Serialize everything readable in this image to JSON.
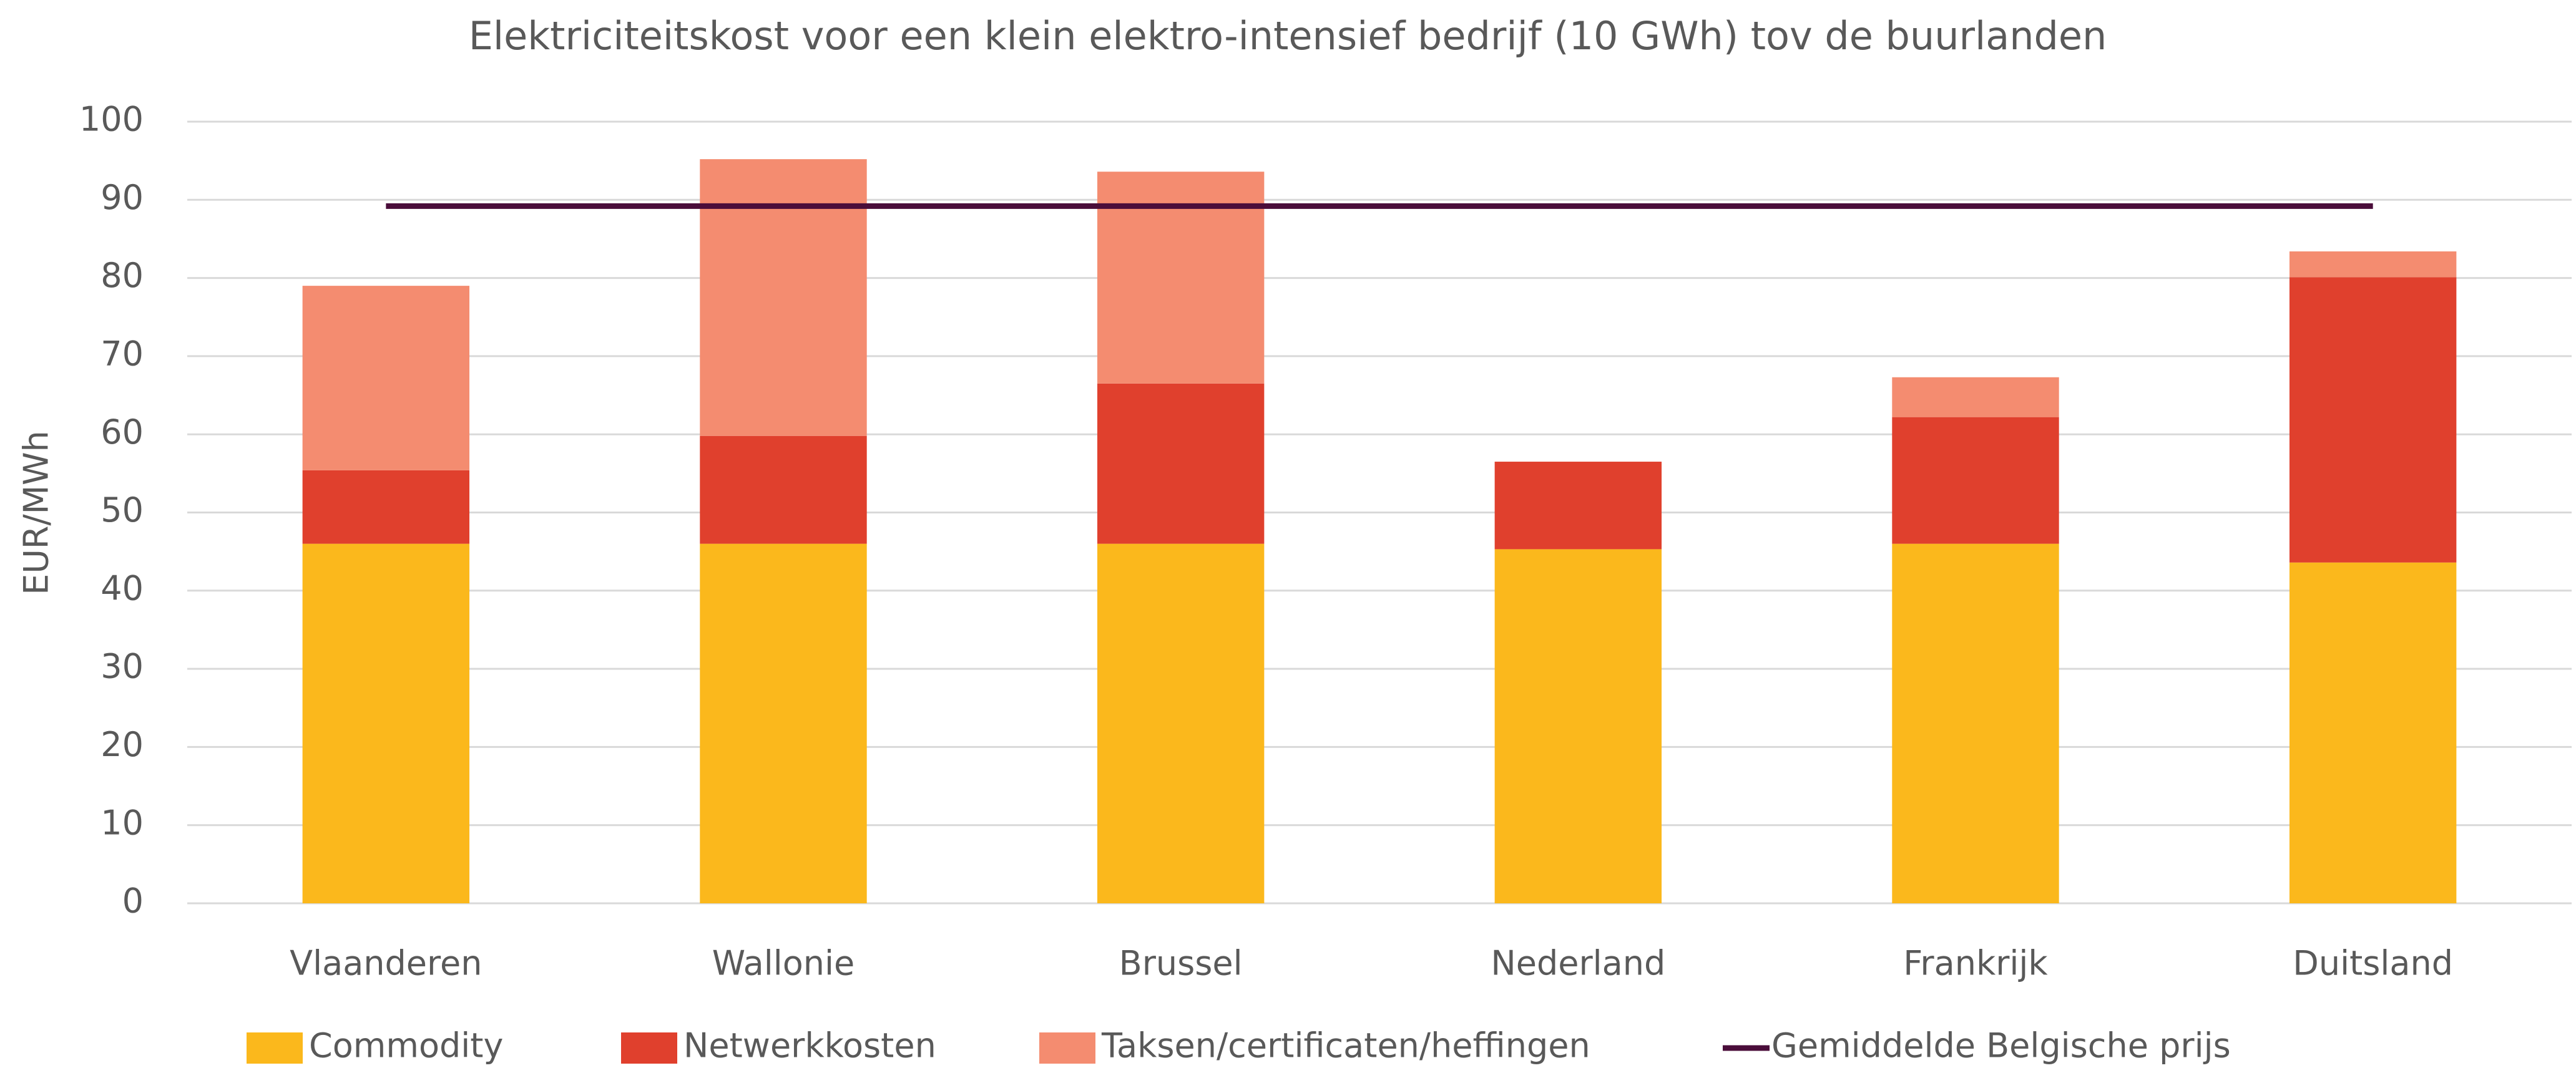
{
  "chart_data": {
    "type": "bar",
    "stacked": true,
    "title": "Elektriciteitskost voor een klein elektro-intensief bedrijf (10 GWh) tov de buurlanden",
    "y_label": "EUR/MWh",
    "categories": [
      "Vlaanderen",
      "Wallonie",
      "Brussel",
      "Nederland",
      "Frankrijk",
      "Duitsland"
    ],
    "series": [
      {
        "name": "Commodity",
        "color": "#fbb81c",
        "values": [
          46,
          46,
          46,
          45.3,
          46,
          43.6
        ]
      },
      {
        "name": "Netwerkkosten",
        "color": "#e0402d",
        "values": [
          9.4,
          13.8,
          20.5,
          11.2,
          16.2,
          36.5
        ]
      },
      {
        "name": "Taksen/certificaten/heffingen",
        "color": "#f48c70",
        "values": [
          23.6,
          35.4,
          27.1,
          0,
          5.1,
          3.3
        ]
      },
      {
        "name": "Gemiddelde Belgische prijs",
        "type": "line",
        "color": "#4a0d3a",
        "values": [
          89.2,
          89.2,
          89.2,
          89.2,
          89.2,
          89.2
        ]
      }
    ],
    "ylim": [
      0,
      100
    ],
    "yticks": [
      0,
      10,
      20,
      30,
      40,
      50,
      60,
      70,
      80,
      90,
      100
    ],
    "grid": true,
    "legend": "bottom"
  }
}
